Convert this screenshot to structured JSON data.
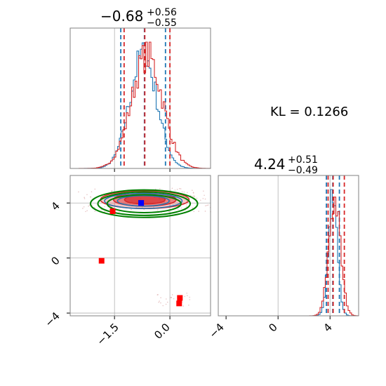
{
  "annotation": {
    "kl_text": "KL = 0.1266"
  },
  "colors": {
    "series_blue": "#1f77b4",
    "series_red": "#d62728",
    "contour_green": "#008000",
    "marker_blue": "#0000ff",
    "marker_red": "#ff0000",
    "grid": "#b0b0b0",
    "axis": "#808080"
  },
  "chart_data": [
    {
      "type": "histogram",
      "panel": "marginal-param-1",
      "title": {
        "main": "−0.68",
        "plus": "+0.56",
        "minus": "−0.55"
      },
      "xlim": [
        -2.7,
        1.1
      ],
      "grid": true,
      "series": [
        {
          "color": "#1f77b4",
          "quantiles": [
            -1.33,
            -0.69,
            -0.12
          ],
          "shape": "histogram",
          "mean": -0.72,
          "sd": 0.37
        },
        {
          "color": "#d62728",
          "quantiles": [
            -1.24,
            -0.68,
            0.0
          ],
          "shape": "histogram",
          "mean": -0.62,
          "sd": 0.42
        }
      ]
    },
    {
      "type": "scatter",
      "panel": "joint-param-1-param-2",
      "xlim": [
        -2.7,
        1.1
      ],
      "ylim": [
        -4.2,
        6.0
      ],
      "xticks": [
        "−1.5",
        "0.0"
      ],
      "yticks": [
        "−4",
        "0",
        "4"
      ],
      "grid": true,
      "contours": [
        {
          "color": "#d62728",
          "filled": true,
          "center": [
            -0.68,
            4.24
          ],
          "levels": [
            [
              1.2,
              0.65
            ],
            [
              0.85,
              0.48
            ],
            [
              0.55,
              0.32
            ]
          ]
        },
        {
          "color": "#1f77b4",
          "filled": false,
          "center": [
            -0.72,
            4.15
          ],
          "levels": [
            [
              1.05,
              0.55
            ],
            [
              0.7,
              0.38
            ]
          ]
        },
        {
          "color": "#008000",
          "filled": false,
          "center": [
            -0.7,
            3.95
          ],
          "levels": [
            [
              1.45,
              1.0
            ],
            [
              1.25,
              0.85
            ],
            [
              1.0,
              0.65
            ]
          ]
        }
      ],
      "markers": [
        {
          "color": "#0000ff",
          "shape": "square",
          "x": -0.78,
          "y": 4.0
        },
        {
          "color": "#ff0000",
          "shape": "square",
          "x": -0.78,
          "y": 4.0
        },
        {
          "color": "#ff0000",
          "shape": "square",
          "x": -1.55,
          "y": 3.4
        },
        {
          "color": "#ff0000",
          "shape": "square",
          "x": -1.85,
          "y": -0.2
        },
        {
          "color": "#ff0000",
          "shape": "square",
          "x": 0.27,
          "y": -2.9
        },
        {
          "color": "#ff0000",
          "shape": "square",
          "x": 0.25,
          "y": -3.3
        }
      ]
    },
    {
      "type": "histogram",
      "panel": "marginal-param-2",
      "title": {
        "main": "4.24",
        "plus": "+0.51",
        "minus": "−0.49"
      },
      "xlim": [
        -4.6,
        6.2
      ],
      "xticks": [
        "−4",
        "0",
        "4"
      ],
      "grid": true,
      "series": [
        {
          "color": "#1f77b4",
          "quantiles": [
            3.72,
            4.21,
            4.72
          ],
          "shape": "histogram",
          "mean": 4.22,
          "sd": 0.35
        },
        {
          "color": "#d62728",
          "quantiles": [
            3.85,
            4.24,
            5.1
          ],
          "shape": "histogram",
          "mean": 4.35,
          "sd": 0.45
        }
      ]
    }
  ]
}
